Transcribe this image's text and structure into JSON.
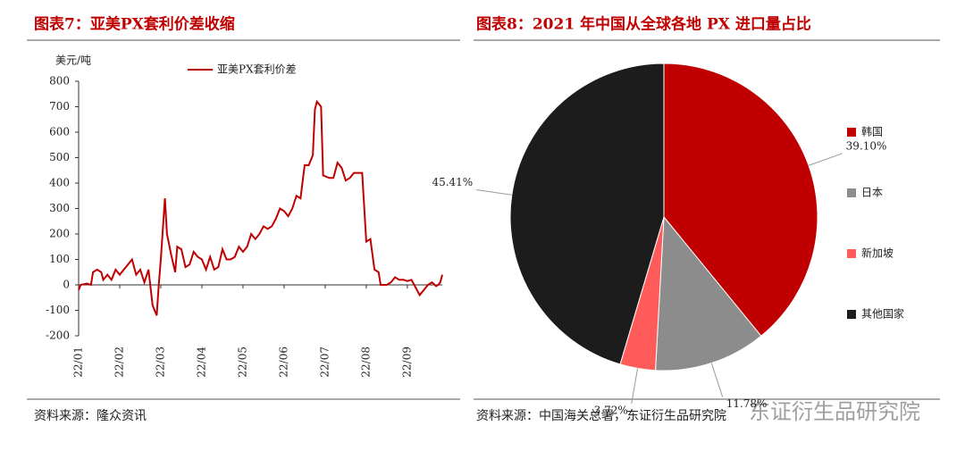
{
  "chart_data": [
    {
      "type": "line",
      "title": "图表7：亚美PX套利价差收缩",
      "y_label": "美元/吨",
      "legend": "top",
      "series": [
        {
          "name": "亚美PX套利价差",
          "color": "#c00000",
          "x": [
            0,
            0.05,
            0.2,
            0.3,
            0.35,
            0.45,
            0.55,
            0.6,
            0.7,
            0.8,
            0.9,
            1.0,
            1.1,
            1.2,
            1.3,
            1.4,
            1.5,
            1.6,
            1.7,
            1.75,
            1.8,
            1.9,
            1.95,
            2.0,
            2.1,
            2.15,
            2.25,
            2.35,
            2.4,
            2.5,
            2.6,
            2.7,
            2.8,
            2.9,
            3.0,
            3.1,
            3.2,
            3.3,
            3.4,
            3.5,
            3.6,
            3.7,
            3.8,
            3.9,
            4.0,
            4.1,
            4.2,
            4.3,
            4.4,
            4.5,
            4.6,
            4.7,
            4.8,
            4.9,
            5.0,
            5.1,
            5.2,
            5.3,
            5.4,
            5.5,
            5.6,
            5.7,
            5.75,
            5.8,
            5.9,
            5.95,
            6.1,
            6.2,
            6.3,
            6.4,
            6.5,
            6.6,
            6.7,
            6.8,
            6.9,
            7.0,
            7.1,
            7.2,
            7.3,
            7.35,
            7.5,
            7.6,
            7.7,
            7.8,
            7.9,
            8.0,
            8.1,
            8.2,
            8.3,
            8.4,
            8.5,
            8.6,
            8.7,
            8.75,
            8.8,
            8.85
          ],
          "values": [
            -20,
            0,
            5,
            0,
            50,
            60,
            50,
            20,
            40,
            20,
            60,
            40,
            60,
            80,
            100,
            40,
            60,
            10,
            60,
            -10,
            -80,
            -120,
            0,
            100,
            340,
            200,
            120,
            50,
            150,
            140,
            70,
            80,
            130,
            110,
            100,
            60,
            110,
            60,
            70,
            140,
            100,
            100,
            110,
            150,
            130,
            150,
            200,
            180,
            200,
            230,
            220,
            230,
            260,
            300,
            290,
            270,
            300,
            350,
            340,
            470,
            470,
            510,
            690,
            720,
            700,
            430,
            420,
            420,
            480,
            460,
            410,
            420,
            440,
            440,
            440,
            170,
            180,
            60,
            50,
            0,
            0,
            10,
            30,
            20,
            20,
            15,
            20,
            -10,
            -40,
            -20,
            0,
            10,
            -5,
            0,
            10,
            40
          ]
        }
      ],
      "xlim": [
        0,
        8.85
      ],
      "xticks": [
        {
          "value": 0,
          "label": "22/01"
        },
        {
          "value": 1,
          "label": "22/02"
        },
        {
          "value": 2,
          "label": "22/03"
        },
        {
          "value": 3,
          "label": "22/04"
        },
        {
          "value": 4,
          "label": "22/05"
        },
        {
          "value": 5,
          "label": "22/06"
        },
        {
          "value": 6,
          "label": "22/07"
        },
        {
          "value": 7,
          "label": "22/08"
        },
        {
          "value": 8,
          "label": "22/09"
        }
      ],
      "ylim": [
        -200,
        800
      ],
      "yticks": [
        -200,
        -100,
        0,
        100,
        200,
        300,
        400,
        500,
        600,
        700,
        800
      ],
      "source": "资料来源：隆众资讯"
    },
    {
      "type": "pie",
      "title": "图表8：2021 年中国从全球各地 PX 进口量占比",
      "categories": [
        "韩国",
        "日本",
        "新加坡",
        "其他国家"
      ],
      "values": [
        39.1,
        11.78,
        3.72,
        45.41
      ],
      "value_labels": [
        "39.10%",
        "11.78%",
        "3.72%",
        "45.41%"
      ],
      "colors": [
        "#c00000",
        "#8c8c8c",
        "#ff5b5b",
        "#1c1c1c"
      ],
      "legend": "right",
      "source": "资料来源：中国海关总署，东证衍生品研究院",
      "watermark": "东证衍生品研究院"
    }
  ]
}
